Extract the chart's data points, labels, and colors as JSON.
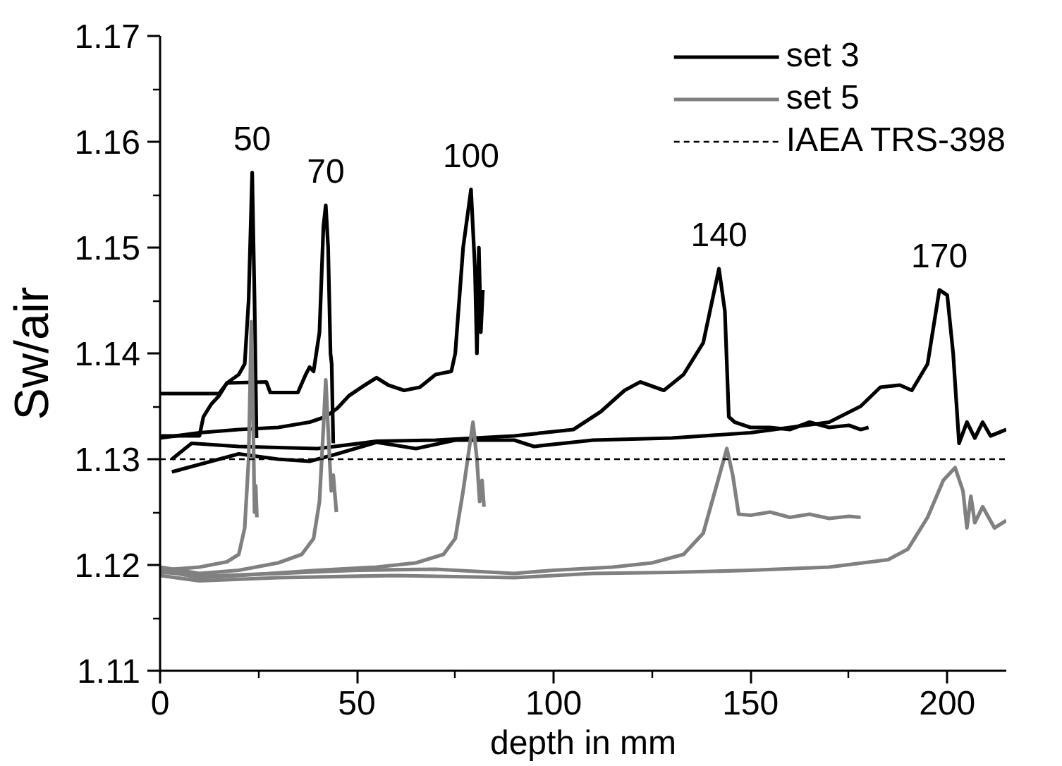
{
  "chart_data": {
    "type": "line",
    "xlabel": "depth in mm",
    "ylabel": "Sw/air",
    "xlim": [
      0,
      215
    ],
    "ylim": [
      1.11,
      1.17
    ],
    "xticks": [
      0,
      {
        "value": 25,
        "label": null
      },
      50,
      {
        "value": 75,
        "label": null
      },
      100,
      {
        "value": 125,
        "label": null
      },
      150,
      {
        "value": 175,
        "label": null
      },
      200
    ],
    "yticks": [
      1.11,
      {
        "value": 1.115,
        "label": null
      },
      1.12,
      {
        "value": 1.125,
        "label": null
      },
      1.13,
      {
        "value": 1.135,
        "label": null
      },
      1.14,
      {
        "value": 1.145,
        "label": null
      },
      1.15,
      {
        "value": 1.155,
        "label": null
      },
      1.16,
      {
        "value": 1.165,
        "label": null
      },
      1.17
    ],
    "legend": "top right",
    "series": [
      {
        "name": "set 3",
        "color": "#000000",
        "x": [
          0,
          15,
          17,
          20,
          21.5,
          22.5,
          23.4,
          24,
          24.5
        ],
        "values": [
          1.1362,
          1.1362,
          1.1372,
          1.138,
          1.139,
          1.145,
          1.1571,
          1.145,
          1.132
        ]
      },
      {
        "color": "#000000",
        "x": [
          0,
          10,
          11,
          13,
          15,
          17,
          27,
          28,
          35,
          37,
          38,
          39,
          40.5,
          41.5,
          42.1,
          42.7,
          43.3,
          43.6,
          44
        ],
        "values": [
          1.1322,
          1.1322,
          1.134,
          1.1352,
          1.136,
          1.1372,
          1.1373,
          1.1363,
          1.1363,
          1.138,
          1.1387,
          1.1383,
          1.142,
          1.152,
          1.154,
          1.15,
          1.14,
          1.139,
          1.1315
        ]
      },
      {
        "color": "#000000",
        "x": [
          0,
          10,
          20,
          30,
          38,
          42,
          45,
          48,
          52,
          55,
          58,
          62,
          66,
          70,
          74,
          75,
          77,
          79,
          80,
          80.5,
          81,
          81.5,
          82
        ],
        "values": [
          1.132,
          1.1325,
          1.1328,
          1.133,
          1.1335,
          1.134,
          1.1348,
          1.136,
          1.137,
          1.1377,
          1.137,
          1.1365,
          1.1368,
          1.138,
          1.1383,
          1.14,
          1.15,
          1.1555,
          1.148,
          1.14,
          1.15,
          1.142,
          1.146
        ]
      },
      {
        "color": "#000000",
        "x": [
          3,
          8,
          20,
          40,
          55,
          70,
          90,
          105,
          112,
          118,
          122,
          128,
          133,
          138,
          142,
          143.5,
          144.5,
          146,
          150,
          155,
          160,
          165,
          170,
          175,
          178,
          180
        ],
        "values": [
          1.13,
          1.1315,
          1.1312,
          1.131,
          1.1317,
          1.1318,
          1.1322,
          1.1328,
          1.1345,
          1.1365,
          1.1373,
          1.1365,
          1.138,
          1.141,
          1.148,
          1.144,
          1.134,
          1.1335,
          1.133,
          1.133,
          1.1328,
          1.1335,
          1.133,
          1.1332,
          1.1328,
          1.133
        ]
      },
      {
        "color": "#000000",
        "x": [
          3,
          10,
          20,
          30,
          38,
          45,
          55,
          65,
          75,
          90,
          95,
          110,
          130,
          150,
          160,
          170,
          178,
          183,
          188,
          191,
          195,
          198,
          200,
          201.5,
          203,
          205,
          207,
          209,
          211,
          213,
          215
        ],
        "values": [
          1.1288,
          1.1295,
          1.1305,
          1.13,
          1.1298,
          1.1305,
          1.1316,
          1.131,
          1.1318,
          1.1318,
          1.1312,
          1.1318,
          1.132,
          1.1325,
          1.133,
          1.1335,
          1.135,
          1.1368,
          1.137,
          1.1365,
          1.139,
          1.146,
          1.1455,
          1.14,
          1.1315,
          1.1335,
          1.132,
          1.1335,
          1.1322,
          1.1325,
          1.1328
        ]
      },
      {
        "name": "set 5",
        "color": "#808080",
        "x": [
          0,
          10,
          17,
          20,
          21.5,
          22.5,
          23.2,
          23.6,
          24,
          24.3,
          24.6
        ],
        "values": [
          1.1195,
          1.1198,
          1.1203,
          1.121,
          1.1235,
          1.13,
          1.143,
          1.135,
          1.125,
          1.1275,
          1.1245
        ]
      },
      {
        "color": "#808080",
        "x": [
          0,
          10,
          20,
          30,
          36,
          39,
          40.5,
          41.5,
          42.1,
          42.8,
          43.5,
          44,
          44.8
        ],
        "values": [
          1.1198,
          1.1192,
          1.1195,
          1.1202,
          1.121,
          1.1225,
          1.126,
          1.133,
          1.1375,
          1.132,
          1.127,
          1.1285,
          1.125
        ]
      },
      {
        "color": "#808080",
        "x": [
          0,
          10,
          20,
          40,
          55,
          65,
          72,
          75,
          77,
          79.5,
          80.5,
          81.2,
          81.8,
          82.3
        ],
        "values": [
          1.1195,
          1.1188,
          1.119,
          1.1195,
          1.1198,
          1.1202,
          1.121,
          1.1225,
          1.127,
          1.1335,
          1.13,
          1.126,
          1.128,
          1.1255
        ]
      },
      {
        "color": "#808080",
        "x": [
          0,
          15,
          30,
          50,
          70,
          90,
          100,
          115,
          125,
          133,
          138,
          141,
          144,
          145.5,
          147,
          150,
          155,
          160,
          165,
          170,
          175,
          178
        ],
        "values": [
          1.1193,
          1.119,
          1.1192,
          1.1195,
          1.1196,
          1.1192,
          1.1195,
          1.1198,
          1.1202,
          1.121,
          1.123,
          1.127,
          1.131,
          1.1285,
          1.1248,
          1.1247,
          1.125,
          1.1245,
          1.1248,
          1.1244,
          1.1246,
          1.1245
        ]
      },
      {
        "color": "#808080",
        "x": [
          0,
          10,
          30,
          60,
          90,
          110,
          130,
          150,
          170,
          185,
          190,
          195,
          199,
          202,
          204,
          205,
          206,
          207,
          209,
          212,
          215
        ],
        "values": [
          1.119,
          1.1185,
          1.1188,
          1.119,
          1.1188,
          1.1192,
          1.1193,
          1.1195,
          1.1198,
          1.1205,
          1.1215,
          1.1245,
          1.128,
          1.1292,
          1.127,
          1.1235,
          1.1265,
          1.124,
          1.1255,
          1.1235,
          1.1242
        ]
      }
    ],
    "ref_lines": [
      {
        "axis": "y",
        "value": 1.13,
        "label": "IAEA TRS-398",
        "color": "#000000",
        "line_style": "dashed"
      }
    ],
    "annotations": [
      {
        "text": "50",
        "x": 23.4,
        "y": 1.1571
      },
      {
        "text": "70",
        "x": 42.1,
        "y": 1.154
      },
      {
        "text": "100",
        "x": 79,
        "y": 1.1555
      },
      {
        "text": "140",
        "x": 142,
        "y": 1.148
      },
      {
        "text": "170",
        "x": 198,
        "y": 1.146
      }
    ]
  }
}
